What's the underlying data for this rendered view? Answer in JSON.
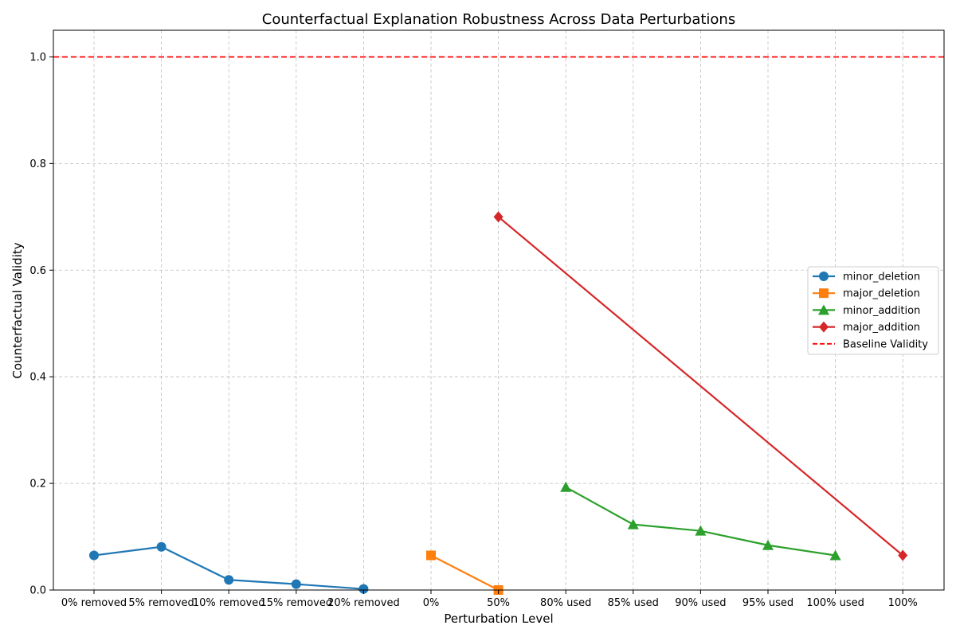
{
  "chart_data": {
    "type": "line",
    "title": "Counterfactual Explanation Robustness Across Data Perturbations",
    "xlabel": "Perturbation Level",
    "ylabel": "Counterfactual Validity",
    "categories": [
      "0% removed",
      "5% removed",
      "10% removed",
      "15% removed",
      "20% removed",
      "0%",
      "50%",
      "80% used",
      "85% used",
      "90% used",
      "95% used",
      "100% used",
      "100%"
    ],
    "ylim": [
      0,
      1.05
    ],
    "yticks": [
      0.0,
      0.2,
      0.4,
      0.6,
      0.8,
      1.0
    ],
    "ytick_labels": [
      "0.0",
      "0.2",
      "0.4",
      "0.6",
      "0.8",
      "1.0"
    ],
    "grid": true,
    "legend_position": "center-right",
    "series": [
      {
        "name": "minor_deletion",
        "color": "#1f77b4",
        "marker": "circle",
        "x": [
          "0% removed",
          "5% removed",
          "10% removed",
          "15% removed",
          "20% removed"
        ],
        "values": [
          0.065,
          0.081,
          0.019,
          0.011,
          0.002
        ]
      },
      {
        "name": "major_deletion",
        "color": "#ff7f0e",
        "marker": "square",
        "x": [
          "0%",
          "50%"
        ],
        "values": [
          0.065,
          0.0
        ]
      },
      {
        "name": "minor_addition",
        "color": "#2ca02c",
        "marker": "triangle",
        "x": [
          "80% used",
          "85% used",
          "90% used",
          "95% used",
          "100% used"
        ],
        "values": [
          0.193,
          0.123,
          0.111,
          0.084,
          0.065
        ]
      },
      {
        "name": "major_addition",
        "color": "#d62728",
        "marker": "diamond",
        "x": [
          "50%",
          "100%"
        ],
        "values": [
          0.7,
          0.065
        ]
      }
    ],
    "baseline": {
      "name": "Baseline Validity",
      "value": 1.0,
      "color": "#ff0000",
      "style": "dashed"
    }
  }
}
